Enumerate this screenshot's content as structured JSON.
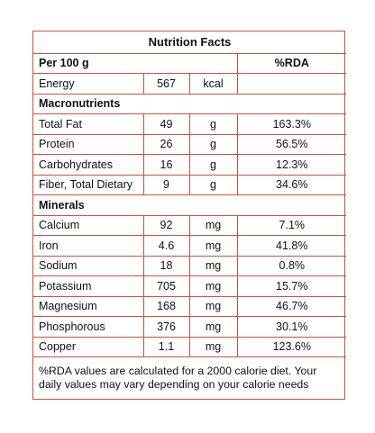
{
  "title": "Nutrition Facts",
  "header": {
    "per": "Per 100 g",
    "rda": "%RDA"
  },
  "energy": {
    "label": "Energy",
    "value": "567",
    "unit": "kcal",
    "rda": ""
  },
  "macronutrients": {
    "heading": "Macronutrients",
    "rows": [
      {
        "name": "Total Fat",
        "value": "49",
        "unit": "g",
        "rda": "163.3%"
      },
      {
        "name": "Protein",
        "value": "26",
        "unit": "g",
        "rda": "56.5%"
      },
      {
        "name": "Carbohydrates",
        "value": "16",
        "unit": "g",
        "rda": "12.3%"
      },
      {
        "name": "Fiber, Total Dietary",
        "value": "9",
        "unit": "g",
        "rda": "34.6%"
      }
    ]
  },
  "minerals": {
    "heading": "Minerals",
    "rows": [
      {
        "name": "Calcium",
        "value": "92",
        "unit": "mg",
        "rda": "7.1%"
      },
      {
        "name": "Iron",
        "value": "4.6",
        "unit": "mg",
        "rda": "41.8%"
      },
      {
        "name": "Sodium",
        "value": "18",
        "unit": "mg",
        "rda": "0.8%"
      },
      {
        "name": "Potassium",
        "value": "705",
        "unit": "mg",
        "rda": "15.7%"
      },
      {
        "name": "Magnesium",
        "value": "168",
        "unit": "mg",
        "rda": "46.7%"
      },
      {
        "name": "Phosphorous",
        "value": "376",
        "unit": "mg",
        "rda": "30.1%"
      },
      {
        "name": "Copper",
        "value": "1.1",
        "unit": "mg",
        "rda": "123.6%"
      }
    ]
  },
  "footnote": "%RDA values are calculated for a 2000 calorie diet. Your daily values may vary depending on your calorie needs",
  "colors": {
    "border": "#c8553a",
    "text": "#111111"
  }
}
